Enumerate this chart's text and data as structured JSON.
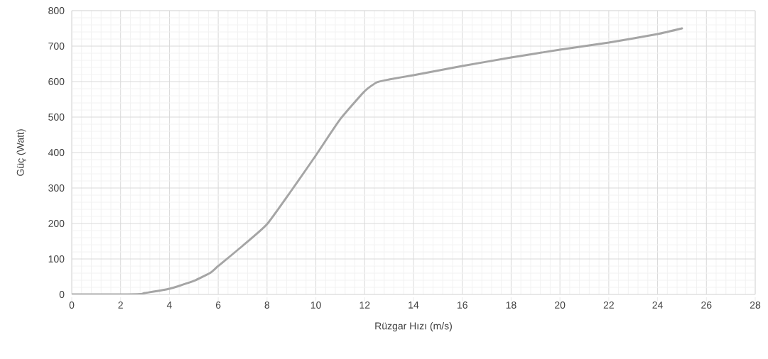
{
  "chart_data": {
    "type": "line",
    "xlabel": "Rüzgar Hızı (m/s)",
    "ylabel": "Güç (Watt)",
    "x": [
      0,
      1,
      2,
      2.8,
      3,
      4,
      5,
      5.7,
      6,
      7,
      8,
      9,
      10,
      11,
      12,
      12.5,
      13,
      14,
      15,
      16,
      18,
      20,
      22,
      24,
      25
    ],
    "series": [
      {
        "color": "#a5a5a5",
        "values": [
          0,
          0,
          0,
          1,
          4,
          16,
          38,
          62,
          80,
          137,
          198,
          293,
          392,
          494,
          573,
          598,
          606,
          618,
          631,
          644,
          668,
          690,
          710,
          734,
          750
        ]
      }
    ],
    "xlim": [
      0,
      28
    ],
    "ylim": [
      0,
      800
    ],
    "xticks": [
      0,
      2,
      4,
      6,
      8,
      10,
      12,
      14,
      16,
      18,
      20,
      22,
      24,
      26,
      28
    ],
    "yticks": [
      0,
      100,
      200,
      300,
      400,
      500,
      600,
      700,
      800
    ],
    "grid": true,
    "marker": "none",
    "line_style": "solid"
  }
}
